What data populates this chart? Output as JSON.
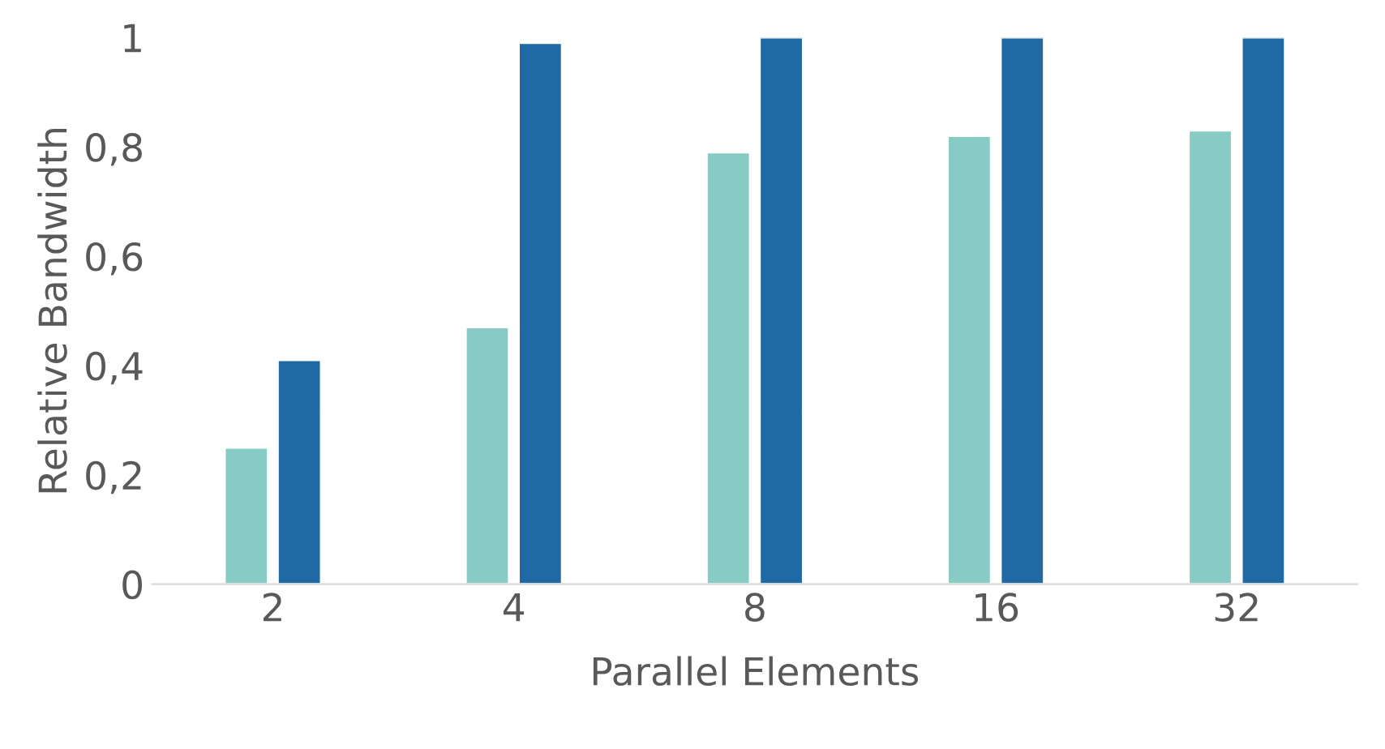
{
  "chart_data": {
    "type": "bar",
    "xlabel": "Parallel Elements",
    "ylabel": "Relative Bandwidth",
    "categories": [
      "2",
      "4",
      "8",
      "16",
      "32"
    ],
    "series": [
      {
        "color": "#86ccc4",
        "values": [
          0.25,
          0.47,
          0.79,
          0.82,
          0.83
        ]
      },
      {
        "color": "#1f6aa5",
        "values": [
          0.41,
          0.99,
          1.0,
          1.0,
          1.0
        ]
      }
    ],
    "ylim": [
      0,
      1
    ],
    "yticks": [
      {
        "value": 0,
        "label": "0"
      },
      {
        "value": 0.2,
        "label": "0,2"
      },
      {
        "value": 0.4,
        "label": "0,4"
      },
      {
        "value": 0.6,
        "label": "0,6"
      },
      {
        "value": 0.8,
        "label": "0,8"
      },
      {
        "value": 1,
        "label": "1"
      }
    ],
    "grid": false,
    "legend": false
  }
}
